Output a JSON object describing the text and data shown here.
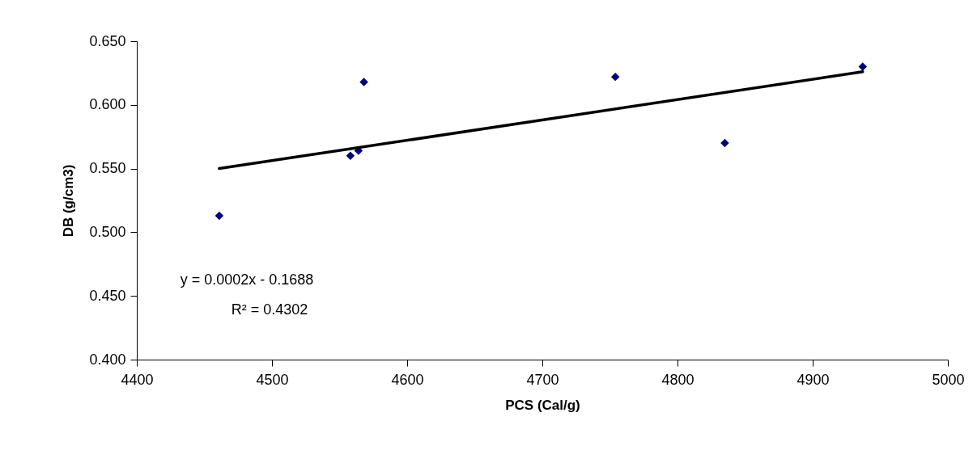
{
  "chart_data": {
    "type": "scatter",
    "xlabel": "PCS (Cal/g)",
    "ylabel": "DB (g/cm3)",
    "x": [
      4461,
      4558,
      4564,
      4568,
      4754,
      4835,
      4937
    ],
    "series": [
      {
        "color": "#000080",
        "marker": "diamond",
        "values": [
          0.513,
          0.56,
          0.564,
          0.618,
          0.622,
          0.57,
          0.63
        ]
      },
      {
        "type": "line",
        "color": "#000000",
        "x": [
          4461,
          4937
        ],
        "values": [
          0.55,
          0.626
        ],
        "line_style": "solid"
      }
    ],
    "xlim": [
      4400,
      5000
    ],
    "xticks": [
      4400,
      4500,
      4600,
      4700,
      4800,
      4900,
      5000
    ],
    "ylim": [
      0.4,
      0.65
    ],
    "yticks": [
      {
        "value": 0.4,
        "label": "0.400"
      },
      {
        "value": 0.45,
        "label": "0.450"
      },
      {
        "value": 0.5,
        "label": "0.500"
      },
      {
        "value": 0.55,
        "label": "0.550"
      },
      {
        "value": 0.6,
        "label": "0.600"
      },
      {
        "value": 0.65,
        "label": "0.650"
      }
    ],
    "annotations": [
      "y = 0.0002x - 0.1688",
      "R² = 0.4302"
    ],
    "grid": false
  }
}
